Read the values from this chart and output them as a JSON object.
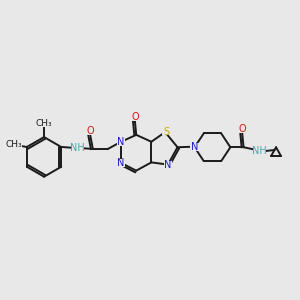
{
  "bg_color": "#e8e8e8",
  "bond_color": "#1a1a1a",
  "bond_lw": 1.4,
  "atom_colors": {
    "N": "#1a1acc",
    "O": "#cc1a1a",
    "S": "#ccaa00",
    "NH": "#44aaaa",
    "C": "#1a1a1a"
  },
  "font_size": 7.0
}
